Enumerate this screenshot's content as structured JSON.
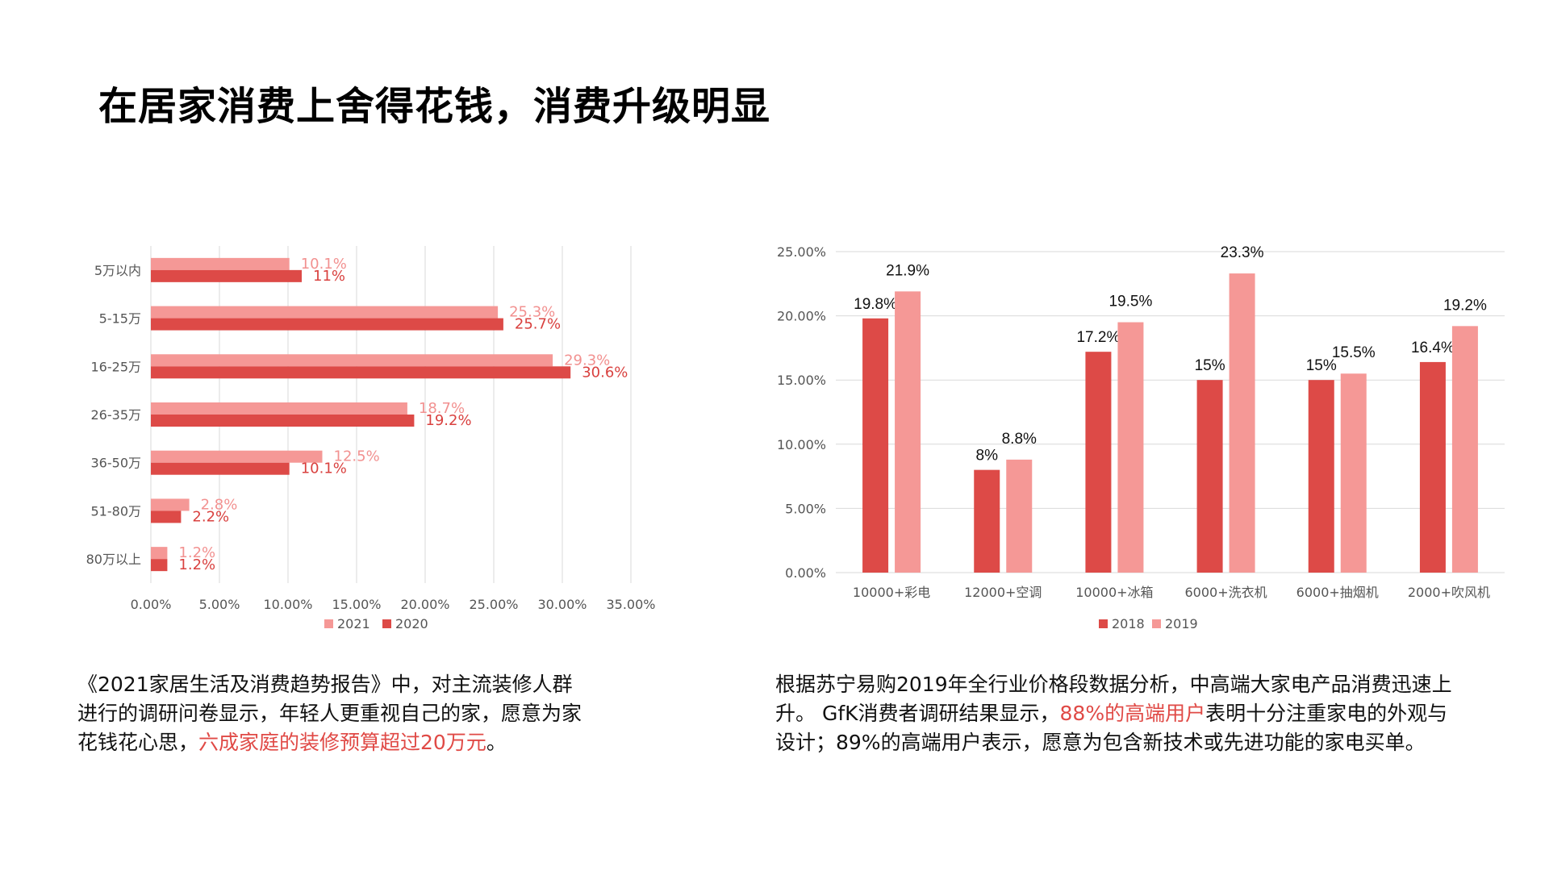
{
  "page": {
    "title": "在居家消费上舍得花钱，消费升级明显"
  },
  "colors": {
    "dark_red": "#dd4a47",
    "light_red": "#f59896",
    "highlight": "#e04a46",
    "grid": "#d9d9d9"
  },
  "left_text": {
    "line1": "《2021家居生活及消费趋势报告》中，对主流装修人群",
    "line2": "进行的调研问卷显示，年轻人更重视自己的家，愿意为家",
    "line3_pre": "花钱花心思，",
    "line3_hl": "六成家庭的装修预算超过20万元",
    "line3_post": "。"
  },
  "right_text": {
    "line1": "根据苏宁易购2019年全行业价格段数据分析，中高端大家电产品消费迅速上",
    "line2_pre": "升。 GfK消费者调研结果显示，",
    "line2_hl": "88%的高端用户",
    "line2_post": "表明十分注重家电的外观与",
    "line3": "设计；89%的高端用户表示，愿意为包含新技术或先进功能的家电买单。"
  },
  "chart_data": [
    {
      "type": "bar",
      "orientation": "horizontal",
      "categories": [
        "5万以内",
        "5-15万",
        "16-25万",
        "26-35万",
        "36-50万",
        "51-80万",
        "80万以上"
      ],
      "series": [
        {
          "name": "2021",
          "values": [
            10.1,
            25.3,
            29.3,
            18.7,
            12.5,
            2.8,
            1.2
          ],
          "labels": [
            "10.1%",
            "25.3%",
            "29.3%",
            "18.7%",
            "12.5%",
            "2.8%",
            "1.2%"
          ],
          "color": "#f59896"
        },
        {
          "name": "2020",
          "values": [
            11,
            25.7,
            30.6,
            19.2,
            10.1,
            2.2,
            1.2
          ],
          "labels": [
            "11%",
            "25.7%",
            "30.6%",
            "19.2%",
            "10.1%",
            "2.2%",
            "1.2%"
          ],
          "color": "#dd4a47"
        }
      ],
      "xticks": [
        "0.00%",
        "5.00%",
        "10.00%",
        "15.00%",
        "20.00%",
        "25.00%",
        "30.00%",
        "35.00%"
      ],
      "xlim": [
        0,
        35
      ],
      "grid": true,
      "legend": "bottom"
    },
    {
      "type": "bar",
      "orientation": "vertical",
      "categories": [
        "10000+彩电",
        "12000+空调",
        "10000+冰箱",
        "6000+洗衣机",
        "6000+抽烟机",
        "2000+吹风机"
      ],
      "series": [
        {
          "name": "2018",
          "values": [
            19.8,
            8,
            17.2,
            15,
            15,
            16.4
          ],
          "labels": [
            "19.8%",
            "8%",
            "17.2%",
            "15%",
            "15%",
            "16.4%"
          ],
          "color": "#dd4a47"
        },
        {
          "name": "2019",
          "values": [
            21.9,
            8.8,
            19.5,
            23.3,
            15.5,
            19.2
          ],
          "labels": [
            "21.9%",
            "8.8%",
            "19.5%",
            "23.3%",
            "15.5%",
            "19.2%"
          ],
          "color": "#f59896"
        }
      ],
      "yticks": [
        "0.00%",
        "5.00%",
        "10.00%",
        "15.00%",
        "20.00%",
        "25.00%"
      ],
      "ylim": [
        0,
        25
      ],
      "grid": true,
      "legend": "bottom"
    }
  ]
}
